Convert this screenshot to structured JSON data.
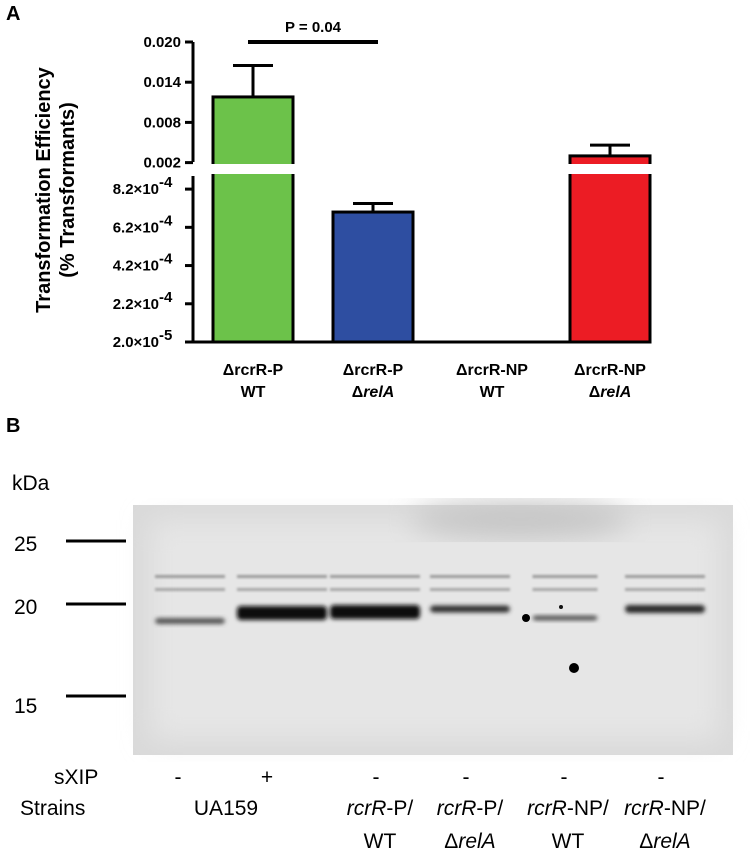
{
  "panels": {
    "a": "A",
    "b": "B"
  },
  "chart_data": {
    "type": "bar",
    "ylabel_line1": "Transformation Efficiency",
    "ylabel_line2": "(% Transformants)",
    "axis_break": true,
    "upper_segment": {
      "ylim": [
        0.0,
        0.02
      ],
      "ticks": [
        {
          "value": 0.002,
          "label": "0.002"
        },
        {
          "value": 0.008,
          "label": "0.008"
        },
        {
          "value": 0.014,
          "label": "0.014"
        },
        {
          "value": 0.02,
          "label": "0.020"
        }
      ]
    },
    "lower_segment": {
      "ylim": [
        2e-05,
        0.00092
      ],
      "ticks": [
        {
          "value": 2e-05,
          "label": "2.0×10",
          "exp": "-5"
        },
        {
          "value": 0.00022,
          "label": "2.2×10",
          "exp": "-4"
        },
        {
          "value": 0.00042,
          "label": "4.2×10",
          "exp": "-4"
        },
        {
          "value": 0.00062,
          "label": "6.2×10",
          "exp": "-4"
        },
        {
          "value": 0.00082,
          "label": "8.2×10",
          "exp": "-4"
        }
      ]
    },
    "categories": [
      {
        "line1": "ΔrcrR-P",
        "line2": "WT",
        "line2_italic": false
      },
      {
        "line1": "ΔrcrR-P",
        "line2_prefix": "Δ",
        "line2": "relA",
        "line2_italic": true
      },
      {
        "line1": "ΔrcrR-NP",
        "line2": "WT",
        "line2_italic": false
      },
      {
        "line1": "ΔrcrR-NP",
        "line2_prefix": "Δ",
        "line2": "relA",
        "line2_italic": true
      }
    ],
    "values": [
      0.0118,
      0.0007,
      null,
      0.003
    ],
    "errors": [
      0.0047,
      4.5e-05,
      null,
      0.0016
    ],
    "colors": [
      "#6cc24a",
      "#2e4ea1",
      "#ffffff",
      "#ec1c24"
    ],
    "significance": {
      "from": 0,
      "to": 1,
      "label": "P = 0.04"
    }
  },
  "blot": {
    "unit": "kDa",
    "markers": [
      "25",
      "20",
      "15"
    ],
    "row1_label": "sXIP",
    "row2_label": "Strains",
    "lanes": [
      {
        "sxip": "-",
        "strain": "UA159",
        "strain_line2": ""
      },
      {
        "sxip": "+",
        "strain": "",
        "strain_line2": ""
      },
      {
        "sxip": "-",
        "strain_it": "rcrR",
        "strain": "-P/",
        "strain_line2": "WT",
        "line2_prefix": "",
        "line2_italic": false
      },
      {
        "sxip": "-",
        "strain_it": "rcrR",
        "strain": "-P/",
        "strain_line2": "relA",
        "line2_prefix": "Δ",
        "line2_italic": true
      },
      {
        "sxip": "-",
        "strain_it": "rcrR",
        "strain": "-NP/",
        "strain_line2": "WT",
        "line2_prefix": "",
        "line2_italic": false
      },
      {
        "sxip": "-",
        "strain_it": "rcrR",
        "strain": "-NP/",
        "strain_line2": "relA",
        "line2_prefix": "Δ",
        "line2_italic": true
      }
    ]
  }
}
